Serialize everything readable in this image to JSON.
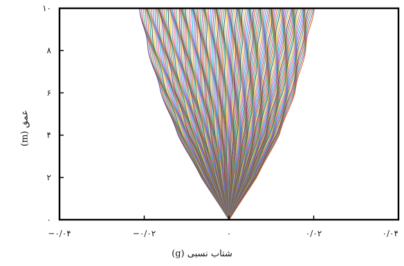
{
  "chart_data": {
    "type": "line",
    "title": "",
    "xlabel": "شتاب نسبی (g)",
    "ylabel": "عمق (m)",
    "xlim": [
      -0.04,
      0.04
    ],
    "ylim": [
      0,
      10
    ],
    "x_ticks": [
      -0.04,
      -0.02,
      0,
      0.02,
      0.04
    ],
    "x_tick_labels": [
      "−۰/۰۴",
      "−۰/۰۲",
      "۰",
      "۰/۰۲",
      "۰/۰۴"
    ],
    "y_ticks": [
      0,
      2,
      4,
      6,
      8,
      10
    ],
    "y_tick_labels": [
      "۰",
      "۲",
      "۴",
      "۶",
      "۸",
      "۱۰"
    ],
    "grid": false,
    "legend": "none",
    "series_profile": {
      "description_note": "",
      "envelope_min_x_at_depth": {
        "depth": [
          0,
          2,
          4,
          6,
          8,
          10
        ],
        "x": [
          0.0,
          -0.0065,
          -0.012,
          -0.016,
          -0.019,
          -0.021
        ]
      },
      "envelope_max_x_at_depth": {
        "depth": [
          0,
          2,
          4,
          6,
          8,
          10
        ],
        "x": [
          0.0,
          0.0065,
          0.0118,
          0.0155,
          0.018,
          0.02
        ]
      },
      "num_curves": 140
    },
    "colors": [
      "#2a2a8c",
      "#c0392b",
      "#27ae60",
      "#8e44ad",
      "#d35400",
      "#16a085",
      "#2c3e50",
      "#f1c40f",
      "#7f8c8d",
      "#e84393",
      "#00a8cc",
      "#6c5ce7",
      "#b33939",
      "#218c74",
      "#ff9f1a"
    ]
  }
}
